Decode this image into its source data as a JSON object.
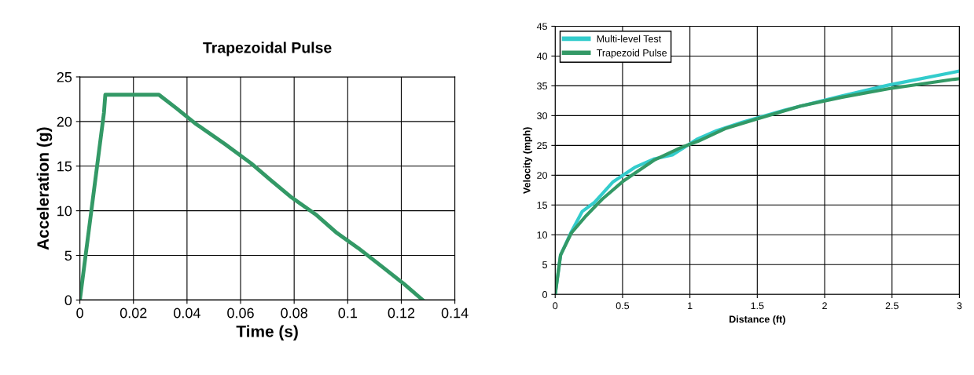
{
  "chart_data": [
    {
      "type": "line",
      "title": "Trapezoidal Pulse",
      "xlabel": "Time (s)",
      "ylabel": "Acceleration (g)",
      "xlim": [
        0,
        0.14
      ],
      "ylim": [
        0,
        25
      ],
      "xticks": [
        0,
        0.02,
        0.04,
        0.06,
        0.08,
        0.1,
        0.12,
        0.14
      ],
      "yticks": [
        0,
        5,
        10,
        15,
        20,
        25
      ],
      "grid": true,
      "legend": false,
      "marker": "none",
      "line_style": "solid",
      "series": [
        {
          "color": "#339966",
          "x": [
            0,
            0.009,
            0.0095,
            0.0295,
            0.036,
            0.043,
            0.054,
            0.064,
            0.071,
            0.079,
            0.088,
            0.096,
            0.104,
            0.113,
            0.121,
            0.128
          ],
          "values": [
            0,
            21,
            23,
            23,
            21.5,
            19.8,
            17.5,
            15.3,
            13.5,
            11.5,
            9.6,
            7.5,
            5.8,
            3.7,
            1.8,
            0
          ]
        }
      ]
    },
    {
      "type": "line",
      "xlabel": "Distance (ft)",
      "ylabel": "Velocity (mph)",
      "xlim": [
        0,
        3
      ],
      "ylim": [
        0,
        45
      ],
      "xticks": [
        0,
        0.5,
        1,
        1.5,
        2,
        2.5,
        3
      ],
      "yticks": [
        0,
        5,
        10,
        15,
        20,
        25,
        30,
        35,
        40,
        45
      ],
      "grid": true,
      "legend": "top left",
      "marker": "none",
      "line_style": "solid",
      "series": [
        {
          "name": "Multi-level Test",
          "color": "#33cccc",
          "x": [
            0,
            0.04,
            0.12,
            0.2,
            0.29,
            0.43,
            0.59,
            0.73,
            0.87,
            1.05,
            1.2,
            1.39,
            1.7,
            2.11,
            2.47,
            2.96,
            3
          ],
          "values": [
            0,
            6.6,
            10.5,
            13.9,
            15.4,
            18.9,
            21.3,
            22.7,
            23.4,
            26,
            27.5,
            28.9,
            30.9,
            33.2,
            35.1,
            37.3,
            37.5
          ]
        },
        {
          "name": "Trapezoid Pulse",
          "color": "#339966",
          "x": [
            0,
            0.04,
            0.12,
            0.23,
            0.35,
            0.51,
            0.74,
            0.93,
            1.06,
            1.26,
            1.49,
            1.82,
            2.13,
            2.47,
            2.96,
            3
          ],
          "values": [
            0,
            6.6,
            10.3,
            13.2,
            16,
            19.1,
            22.6,
            24.6,
            25.7,
            27.8,
            29.4,
            31.6,
            33.1,
            34.5,
            36.1,
            36.2
          ]
        }
      ]
    }
  ]
}
